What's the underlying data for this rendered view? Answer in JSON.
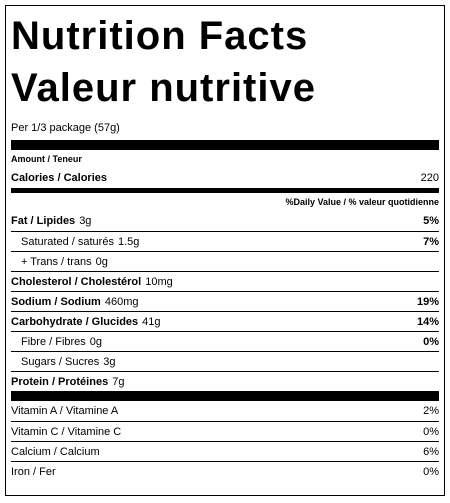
{
  "header": {
    "title": "Nutrition Facts",
    "subtitle": "Valeur nutritive",
    "serving": "Per 1/3 package (57g)"
  },
  "amount_header": "Amount / Teneur",
  "calories": {
    "label": "Calories / Calories",
    "value": 220
  },
  "dv_header": "%Daily Value / % valeur quotidienne",
  "nutrients": [
    {
      "name": "Fat / Lipides",
      "amount": "3g",
      "dv": "5%",
      "sub": [
        {
          "name": "Saturated / saturés",
          "amount": "1.5g",
          "dv": "7%"
        },
        {
          "name": "+ Trans / trans",
          "amount": "0g"
        }
      ]
    },
    {
      "name": "Cholesterol / Cholestérol",
      "amount": "10mg"
    },
    {
      "name": "Sodium / Sodium",
      "amount": "460mg",
      "dv": "19%"
    },
    {
      "name": "Carbohydrate / Glucides",
      "amount": "41g",
      "dv": "14%",
      "sub": [
        {
          "name": "Fibre / Fibres",
          "amount": "0g",
          "dv": "0%"
        },
        {
          "name": "Sugars / Sucres",
          "amount": "3g"
        }
      ]
    },
    {
      "name": "Protein / Protéines",
      "amount": "7g"
    }
  ],
  "vitamins": [
    {
      "name": "Vitamin A / Vitamine A",
      "dv": "2%"
    },
    {
      "name": "Vitamin C / Vitamine C",
      "dv": "0%"
    },
    {
      "name": "Calcium / Calcium",
      "dv": "6%"
    },
    {
      "name": "Iron / Fer",
      "dv": "0%"
    }
  ]
}
